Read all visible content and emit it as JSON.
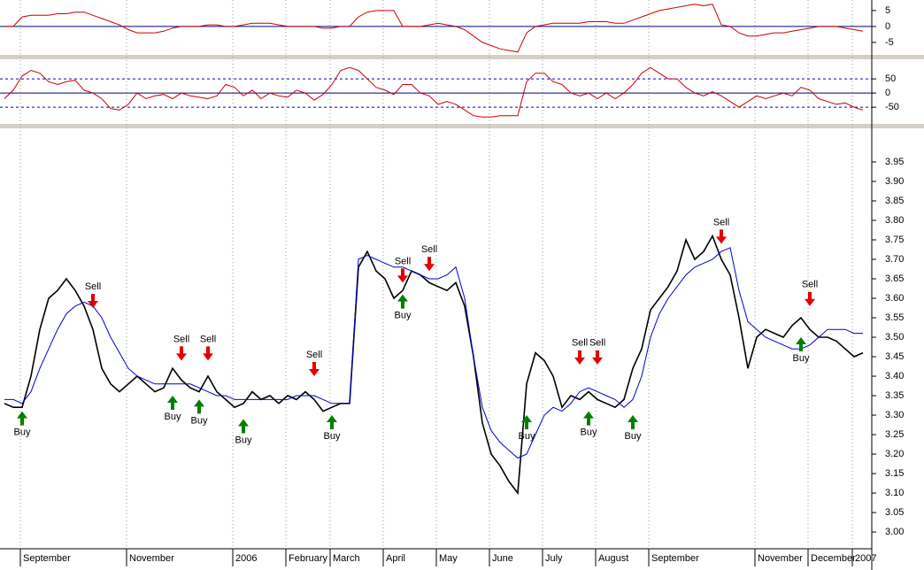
{
  "chart_data": [
    {
      "type": "line",
      "ylim": [
        -8.9,
        8.3
      ],
      "yticks": [
        5,
        0,
        -5
      ],
      "grid_lines": [
        0
      ],
      "series": [
        {
          "color": "#cc0000",
          "values": [
            0,
            0,
            3,
            3.5,
            3.5,
            3.5,
            4,
            4,
            4.5,
            4.5,
            3.5,
            2.5,
            1.5,
            0.5,
            -1,
            -2,
            -2,
            -2,
            -1.5,
            -0.5,
            0,
            0,
            0,
            0.5,
            0.5,
            0,
            0,
            0.5,
            1,
            1,
            1,
            0.5,
            0,
            0,
            0,
            0,
            -0.5,
            -0.5,
            0,
            0,
            3,
            4.5,
            5,
            5,
            5,
            0,
            0,
            0,
            0.5,
            1,
            0.5,
            0,
            -1,
            -3,
            -5,
            -6,
            -7,
            -7.5,
            -8,
            -2,
            0,
            0.5,
            1,
            1,
            1,
            1,
            1.5,
            1.5,
            1.5,
            1,
            1,
            2,
            3,
            4,
            5,
            5.5,
            6,
            6.5,
            7,
            6.5,
            7,
            0.5,
            0,
            -2,
            -3,
            -3,
            -2.5,
            -2,
            -2,
            -1.5,
            -1,
            -0.5,
            0,
            0,
            0,
            -0.5,
            -1,
            -1.5
          ]
        }
      ]
    },
    {
      "type": "line",
      "ylim": [
        -109,
        116
      ],
      "yticks": [
        50,
        0,
        -50
      ],
      "grid_lines": [
        50,
        0,
        -50
      ],
      "series": [
        {
          "color": "#cc0000",
          "values": [
            -20,
            10,
            60,
            80,
            70,
            40,
            30,
            40,
            45,
            10,
            0,
            -20,
            -55,
            -60,
            -40,
            0,
            -20,
            -10,
            -5,
            -20,
            0,
            -10,
            -15,
            -20,
            -10,
            30,
            20,
            -10,
            10,
            -20,
            0,
            -10,
            -15,
            10,
            0,
            -25,
            -5,
            30,
            80,
            90,
            80,
            50,
            20,
            10,
            -5,
            30,
            30,
            0,
            -10,
            -40,
            -30,
            -40,
            -60,
            -80,
            -85,
            -85,
            -80,
            -80,
            -80,
            40,
            70,
            70,
            40,
            30,
            0,
            -10,
            0,
            -20,
            0,
            -20,
            0,
            30,
            70,
            90,
            70,
            50,
            50,
            20,
            0,
            -10,
            5,
            -10,
            -30,
            -50,
            -30,
            -10,
            -20,
            -10,
            0,
            -10,
            20,
            10,
            -20,
            -30,
            -40,
            -35,
            -50,
            -60
          ]
        }
      ]
    },
    {
      "type": "line",
      "ylim": [
        2.957,
        4.034
      ],
      "yticks": [
        {
          "value": 3.95,
          "label": "3.95"
        },
        {
          "value": 3.9,
          "label": "3.90"
        },
        {
          "value": 3.85,
          "label": "3.85"
        },
        {
          "value": 3.8,
          "label": "3.80"
        },
        {
          "value": 3.75,
          "label": "3.75"
        },
        {
          "value": 3.7,
          "label": "3.70"
        },
        {
          "value": 3.65,
          "label": "3.65"
        },
        {
          "value": 3.6,
          "label": "3.60"
        },
        {
          "value": 3.55,
          "label": "3.55"
        },
        {
          "value": 3.5,
          "label": "3.50"
        },
        {
          "value": 3.45,
          "label": "3.45"
        },
        {
          "value": 3.4,
          "label": "3.40"
        },
        {
          "value": 3.35,
          "label": "3.35"
        },
        {
          "value": 3.3,
          "label": "3.30"
        },
        {
          "value": 3.25,
          "label": "3.25"
        },
        {
          "value": 3.2,
          "label": "3.20"
        },
        {
          "value": 3.15,
          "label": "3.15"
        },
        {
          "value": 3.1,
          "label": "3.10"
        },
        {
          "value": 3.05,
          "label": "3.05"
        },
        {
          "value": 3,
          "label": "3.00"
        }
      ],
      "categories": [
        null,
        null,
        "September",
        null,
        null,
        null,
        null,
        null,
        null,
        null,
        null,
        null,
        null,
        null,
        "November",
        null,
        null,
        null,
        null,
        null,
        null,
        null,
        null,
        null,
        null,
        null,
        "2006",
        null,
        null,
        null,
        null,
        null,
        "February",
        null,
        null,
        null,
        null,
        "March",
        null,
        null,
        null,
        null,
        null,
        "April",
        null,
        null,
        null,
        null,
        null,
        "May",
        null,
        null,
        null,
        null,
        null,
        "June",
        null,
        null,
        null,
        null,
        null,
        "July",
        null,
        null,
        null,
        null,
        null,
        "August",
        null,
        null,
        null,
        null,
        null,
        "September",
        null,
        null,
        null,
        null,
        null,
        null,
        null,
        null,
        null,
        null,
        null,
        "November",
        null,
        null,
        null,
        null,
        null,
        "December",
        null,
        null,
        null,
        null,
        "2007",
        null
      ],
      "series": [
        {
          "color": "#000000",
          "values": [
            3.33,
            3.32,
            3.32,
            3.4,
            3.52,
            3.6,
            3.62,
            3.65,
            3.62,
            3.58,
            3.52,
            3.42,
            3.38,
            3.36,
            3.38,
            3.4,
            3.38,
            3.36,
            3.37,
            3.42,
            3.39,
            3.37,
            3.36,
            3.4,
            3.36,
            3.34,
            3.32,
            3.33,
            3.36,
            3.34,
            3.35,
            3.33,
            3.35,
            3.34,
            3.36,
            3.34,
            3.31,
            3.32,
            3.33,
            3.33,
            3.68,
            3.72,
            3.67,
            3.65,
            3.6,
            3.62,
            3.67,
            3.66,
            3.64,
            3.63,
            3.62,
            3.64,
            3.58,
            3.45,
            3.28,
            3.2,
            3.17,
            3.13,
            3.1,
            3.38,
            3.46,
            3.44,
            3.4,
            3.32,
            3.35,
            3.34,
            3.36,
            3.34,
            3.33,
            3.32,
            3.34,
            3.42,
            3.47,
            3.57,
            3.6,
            3.63,
            3.67,
            3.75,
            3.7,
            3.72,
            3.76,
            3.7,
            3.66,
            3.55,
            3.42,
            3.5,
            3.52,
            3.51,
            3.5,
            3.53,
            3.55,
            3.52,
            3.5,
            3.5,
            3.49,
            3.47,
            3.45,
            3.46
          ]
        },
        {
          "color": "#0000cc",
          "values": [
            3.34,
            3.34,
            3.33,
            3.36,
            3.42,
            3.47,
            3.52,
            3.56,
            3.58,
            3.59,
            3.58,
            3.55,
            3.5,
            3.46,
            3.42,
            3.4,
            3.39,
            3.38,
            3.38,
            3.38,
            3.38,
            3.38,
            3.37,
            3.36,
            3.35,
            3.35,
            3.34,
            3.34,
            3.34,
            3.34,
            3.34,
            3.34,
            3.34,
            3.35,
            3.35,
            3.35,
            3.34,
            3.33,
            3.33,
            3.33,
            3.7,
            3.71,
            3.7,
            3.69,
            3.68,
            3.68,
            3.67,
            3.66,
            3.65,
            3.65,
            3.66,
            3.68,
            3.6,
            3.45,
            3.32,
            3.26,
            3.23,
            3.21,
            3.19,
            3.2,
            3.25,
            3.3,
            3.32,
            3.31,
            3.33,
            3.36,
            3.37,
            3.36,
            3.35,
            3.34,
            3.32,
            3.34,
            3.4,
            3.5,
            3.56,
            3.6,
            3.63,
            3.66,
            3.68,
            3.69,
            3.7,
            3.72,
            3.73,
            3.62,
            3.54,
            3.52,
            3.5,
            3.49,
            3.48,
            3.47,
            3.47,
            3.48,
            3.5,
            3.52,
            3.52,
            3.52,
            3.51,
            3.51
          ]
        }
      ],
      "annotations": [
        {
          "text": "Sell",
          "index": 10,
          "value": 3.575
        },
        {
          "text": "Sell",
          "index": 20,
          "value": 3.44
        },
        {
          "text": "Sell",
          "index": 23,
          "value": 3.44
        },
        {
          "text": "Sell",
          "index": 35,
          "value": 3.4
        },
        {
          "text": "Sell",
          "index": 45,
          "value": 3.64
        },
        {
          "text": "Sell",
          "index": 48,
          "value": 3.67
        },
        {
          "text": "Sell",
          "index": 65,
          "value": 3.43
        },
        {
          "text": "Sell",
          "index": 67,
          "value": 3.43
        },
        {
          "text": "Sell",
          "index": 81,
          "value": 3.74
        },
        {
          "text": "Sell",
          "index": 91,
          "value": 3.58
        },
        {
          "text": "Buy",
          "index": 2,
          "value": 3.31
        },
        {
          "text": "Buy",
          "index": 19,
          "value": 3.35
        },
        {
          "text": "Buy",
          "index": 22,
          "value": 3.34
        },
        {
          "text": "Buy",
          "index": 27,
          "value": 3.29
        },
        {
          "text": "Buy",
          "index": 37,
          "value": 3.3
        },
        {
          "text": "Buy",
          "index": 45,
          "value": 3.61
        },
        {
          "text": "Buy",
          "index": 59,
          "value": 3.3
        },
        {
          "text": "Buy",
          "index": 66,
          "value": 3.31
        },
        {
          "text": "Buy",
          "index": 71,
          "value": 3.3
        },
        {
          "text": "Buy",
          "index": 90,
          "value": 3.5
        }
      ]
    }
  ]
}
